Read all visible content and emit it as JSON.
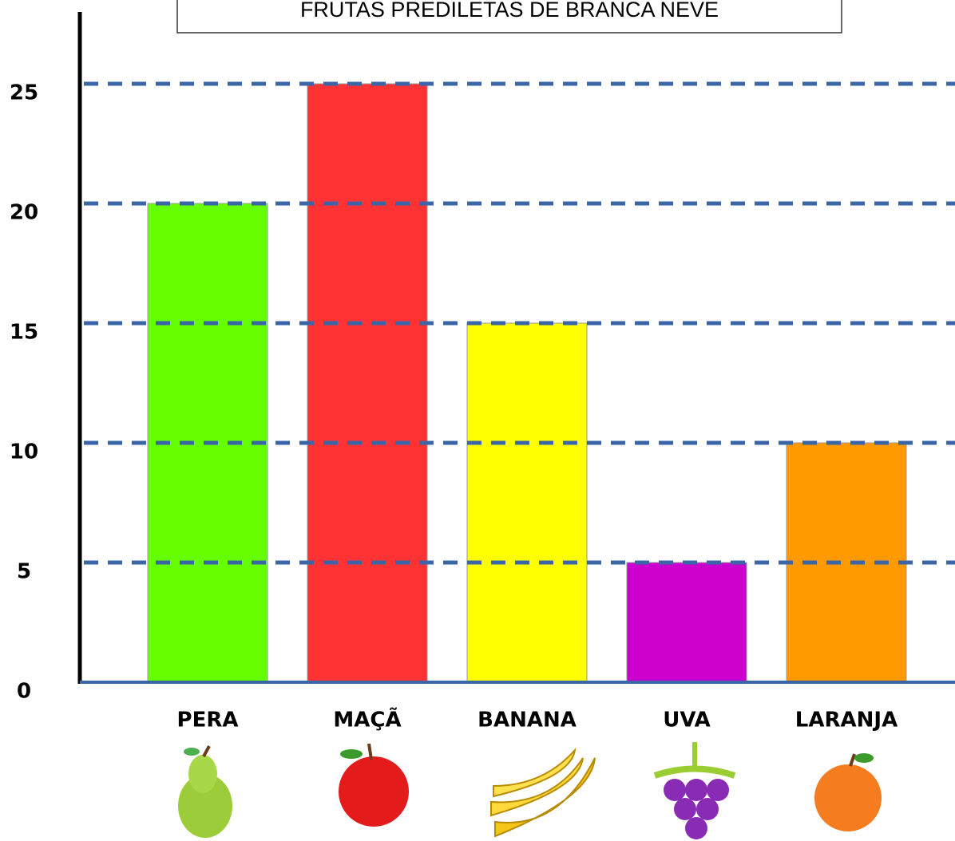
{
  "chart_data": {
    "type": "bar",
    "title": "FRUTAS PREDILETAS DE BRANCA NEVE",
    "categories": [
      "PERA",
      "MAÇÃ",
      "BANANA",
      "UVA",
      "LARANJA"
    ],
    "values": [
      20,
      25,
      15,
      5,
      10
    ],
    "colors": [
      "#66ff00",
      "#ff3333",
      "#ffff00",
      "#cc00cc",
      "#ff9900"
    ],
    "ylim": [
      0,
      28
    ],
    "yticks": [
      0,
      5,
      10,
      15,
      20,
      25
    ],
    "grid": true
  }
}
